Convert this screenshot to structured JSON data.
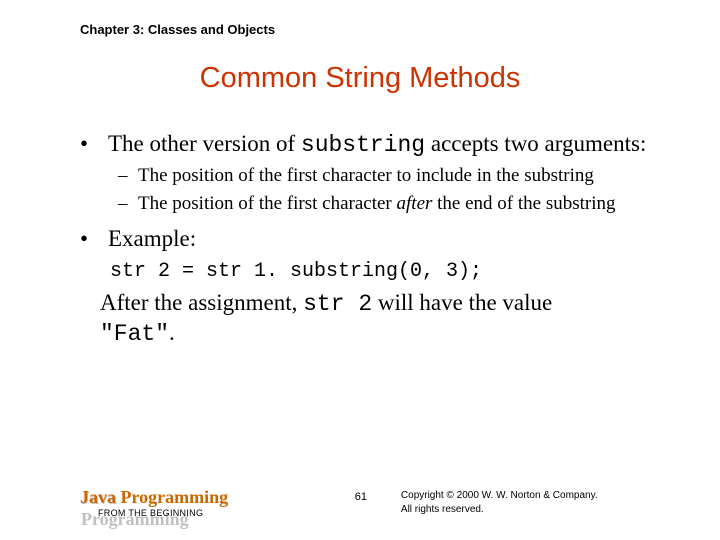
{
  "header": {
    "chapter": "Chapter 3: Classes and Objects"
  },
  "title": "Common String Methods",
  "body": {
    "bullet1_pre": "The other version of ",
    "bullet1_code": "substring",
    "bullet1_post": " accepts two arguments:",
    "sub1": "The position of the first character to include in the substring",
    "sub2_pre": "The position of the first character ",
    "sub2_em": "after",
    "sub2_post": " the end of the substring",
    "bullet2": "Example:",
    "code": "str 2 = str 1. substring(0, 3);",
    "after_pre": "After the assignment, ",
    "after_code": "str 2",
    "after_mid": " will have the value ",
    "after_val": "\"Fat\"",
    "after_end": "."
  },
  "footer": {
    "brand": "Java Programming",
    "subbrand": "FROM THE BEGINNING",
    "page": "61",
    "copyright1": "Copyright © 2000 W. W. Norton & Company.",
    "copyright2": "All rights reserved."
  },
  "colors": {
    "title": "#cc3300",
    "brand": "#cc6600",
    "text": "#000000",
    "background": "#ffffff"
  },
  "fonts": {
    "title_size": 29,
    "body_size": 23,
    "sub_size": 19,
    "code_size": 20
  }
}
